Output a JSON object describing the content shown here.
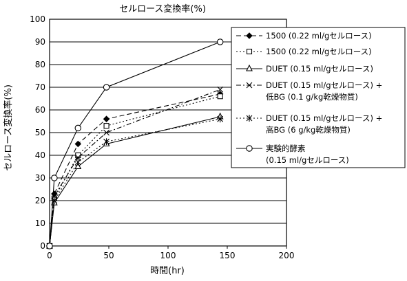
{
  "chart_data": {
    "type": "line",
    "title": "セルロース変換率(%)",
    "xlabel": "時間(hr)",
    "ylabel": "セルロース変換率(%)",
    "xlim": [
      0,
      200
    ],
    "ylim": [
      0,
      100
    ],
    "xticks": [
      0,
      50,
      100,
      150,
      200
    ],
    "yticks": [
      0,
      10,
      20,
      30,
      40,
      50,
      60,
      70,
      80,
      90,
      100
    ],
    "grid": "horizontal",
    "legend_position": "right",
    "series": [
      {
        "name": "1500 (0.22 ml/gセルロース)",
        "lines": [
          "1500 (0.22 ml/gセルロース)"
        ],
        "marker": "diamond-filled",
        "dash": "dash",
        "x": [
          0,
          4,
          24,
          48,
          144
        ],
        "y": [
          0,
          23,
          45,
          56,
          67
        ]
      },
      {
        "name": "1500 (0.22 ml/gセルロース)",
        "lines": [
          "1500 (0.22 ml/gセルロース)"
        ],
        "marker": "square-open",
        "dash": "dot",
        "x": [
          0,
          4,
          24,
          48,
          144
        ],
        "y": [
          0,
          21,
          40,
          53,
          66
        ]
      },
      {
        "name": "DUET (0.15 ml/gセルロース)",
        "lines": [
          "DUET (0.15 ml/gセルロース)"
        ],
        "marker": "triangle-open",
        "dash": "solid",
        "x": [
          0,
          4,
          24,
          48,
          144
        ],
        "y": [
          0,
          19,
          35,
          45,
          57
        ]
      },
      {
        "name": "DUET (0.15 ml/gセルロース) + 低BG (0.1 g/kg乾燥物質)",
        "lines": [
          "DUET (0.15 ml/gセルロース) +",
          "低BG (0.1 g/kg乾燥物質)"
        ],
        "marker": "x",
        "dash": "dashdot",
        "x": [
          0,
          4,
          24,
          48,
          144
        ],
        "y": [
          0,
          22,
          39,
          50,
          69
        ]
      },
      {
        "name": "DUET (0.15 ml/gセルロース) + 高BG (6 g/kg乾燥物質)",
        "lines": [
          "DUET (0.15 ml/gセルロース) +",
          "高BG (6 g/kg乾燥物質)"
        ],
        "marker": "asterisk",
        "dash": "dot",
        "x": [
          0,
          4,
          24,
          48,
          144
        ],
        "y": [
          0,
          20,
          37,
          46,
          56
        ]
      },
      {
        "name": "実験的酵素 (0.15 ml/gセルロース)",
        "lines": [
          "実験的酵素",
          "(0.15 ml/gセルロース)"
        ],
        "marker": "circle-open",
        "dash": "solid",
        "x": [
          0,
          4,
          24,
          48,
          144
        ],
        "y": [
          0,
          30,
          52,
          70,
          90
        ]
      }
    ]
  }
}
